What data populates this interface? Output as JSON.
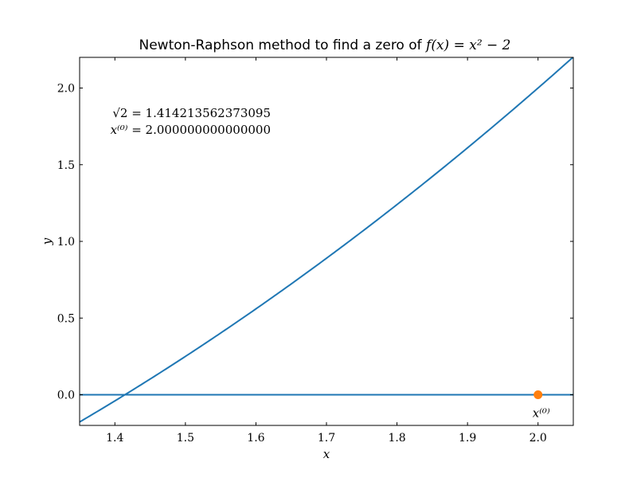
{
  "chart_data": {
    "type": "line",
    "title_prefix": "Newton-Raphson method to find a zero of ",
    "title_math": "f(x) = x² − 2",
    "xlabel": "x",
    "ylabel": "y",
    "xlim": [
      1.35,
      2.05
    ],
    "ylim": [
      -0.2,
      2.2
    ],
    "x_ticks": [
      1.4,
      1.5,
      1.6,
      1.7,
      1.8,
      1.9,
      2.0
    ],
    "x_tick_labels": [
      "1.4",
      "1.5",
      "1.6",
      "1.7",
      "1.8",
      "1.9",
      "2.0"
    ],
    "y_ticks": [
      0.0,
      0.5,
      1.0,
      1.5,
      2.0
    ],
    "y_tick_labels": [
      "0.0",
      "0.5",
      "1.0",
      "1.5",
      "2.0"
    ],
    "grid": false,
    "series": [
      {
        "function": "x^2 - 2",
        "x": [
          1.35,
          1.4,
          1.45,
          1.5,
          1.55,
          1.6,
          1.65,
          1.7,
          1.75,
          1.8,
          1.85,
          1.9,
          1.95,
          2.0,
          2.05
        ],
        "y": [
          -0.1775,
          -0.04,
          0.1025,
          0.25,
          0.4025,
          0.56,
          0.7225,
          0.89,
          1.0625,
          1.24,
          1.4225,
          1.61,
          1.8025,
          2.0,
          2.2025
        ],
        "color": "#1f77b4"
      }
    ],
    "hline": {
      "y": 0.0,
      "color": "#1f77b4"
    },
    "points": [
      {
        "x": 2.0,
        "y": 0.0,
        "label": "x⁽⁰⁾",
        "color": "#ff7f0e"
      }
    ],
    "annotations": {
      "sqrt2_lhs": "√2",
      "sqrt2_value": " = 1.414213562373095",
      "x0_lhs": "x⁽⁰⁾",
      "x0_value": " = 2.000000000000000"
    }
  }
}
